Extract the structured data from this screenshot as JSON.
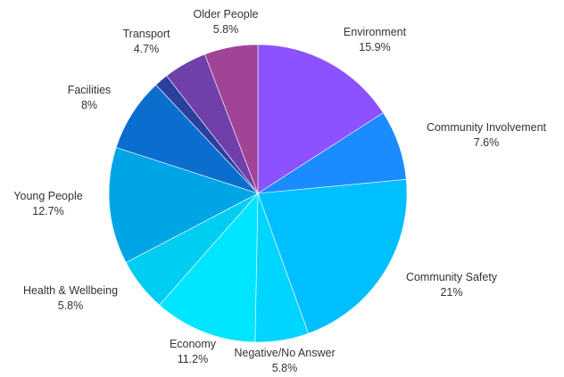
{
  "chart_data": {
    "type": "pie",
    "title": "",
    "start_angle_deg": 0,
    "direction": "clockwise",
    "slices": [
      {
        "label": "Environment",
        "value": 15.9,
        "value_label": "15.9%",
        "color": "#8c52ff"
      },
      {
        "label": "Community Involvement",
        "value": 7.6,
        "value_label": "7.6%",
        "color": "#1a8cff"
      },
      {
        "label": "Community Safety",
        "value": 21,
        "value_label": "21%",
        "color": "#00bfff"
      },
      {
        "label": "Negative/No Answer",
        "value": 5.8,
        "value_label": "5.8%",
        "color": "#00d5ff"
      },
      {
        "label": "Economy",
        "value": 11.2,
        "value_label": "11.2%",
        "color": "#00e5ff"
      },
      {
        "label": "Health & Wellbeing",
        "value": 5.8,
        "value_label": "5.8%",
        "color": "#00cdf2"
      },
      {
        "label": "Young People",
        "value": 12.7,
        "value_label": "12.7%",
        "color": "#00a5e6"
      },
      {
        "label": "Facilities",
        "value": 8,
        "value_label": "8%",
        "color": "#0a6ecf"
      },
      {
        "label": "",
        "value": 1.5,
        "value_label": "",
        "color": "#2a3f9e"
      },
      {
        "label": "Transport",
        "value": 4.7,
        "value_label": "4.7%",
        "color": "#7040aa"
      },
      {
        "label": "Older People",
        "value": 5.8,
        "value_label": "5.8%",
        "color": "#a24496"
      }
    ]
  }
}
